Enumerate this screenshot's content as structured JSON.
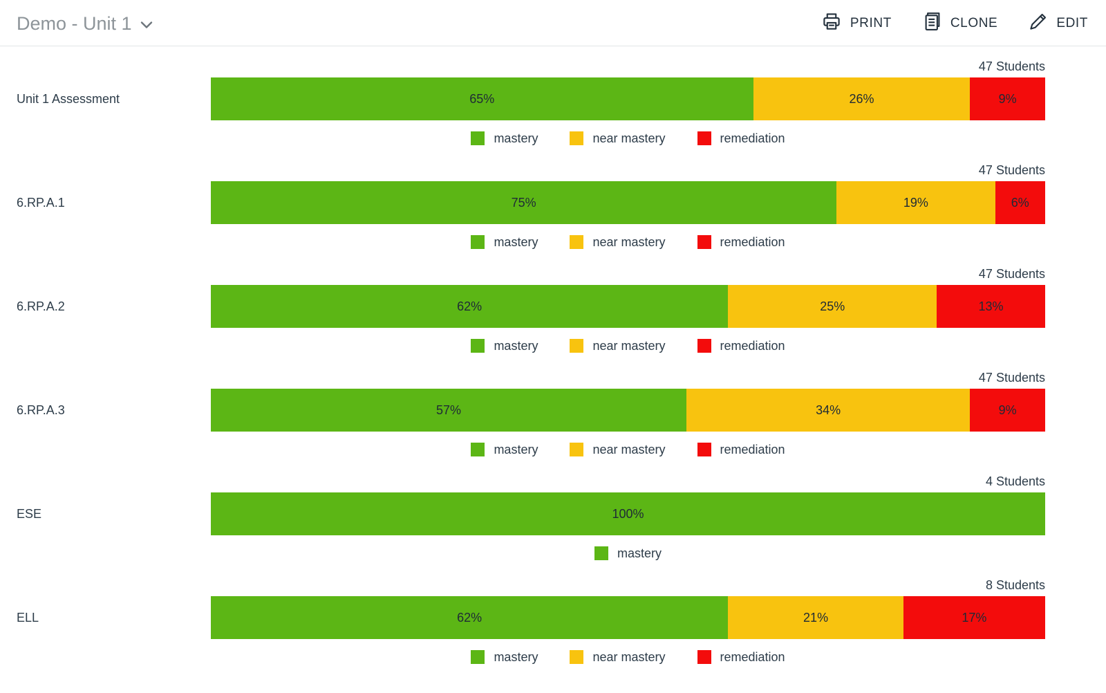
{
  "header": {
    "title": "Demo - Unit 1",
    "actions": {
      "print": "PRINT",
      "clone": "CLONE",
      "edit": "EDIT"
    }
  },
  "colors": {
    "mastery": "#5cb615",
    "near mastery": "#f8c30f",
    "remediation": "#f30c0c"
  },
  "chart_data": [
    {
      "type": "bar",
      "label": "Unit 1 Assessment",
      "students": "47 Students",
      "xlim": [
        0,
        100
      ],
      "segments": [
        {
          "name": "mastery",
          "value": 65
        },
        {
          "name": "near mastery",
          "value": 26
        },
        {
          "name": "remediation",
          "value": 9
        }
      ]
    },
    {
      "type": "bar",
      "label": "6.RP.A.1",
      "students": "47 Students",
      "xlim": [
        0,
        100
      ],
      "segments": [
        {
          "name": "mastery",
          "value": 75
        },
        {
          "name": "near mastery",
          "value": 19
        },
        {
          "name": "remediation",
          "value": 6
        }
      ]
    },
    {
      "type": "bar",
      "label": "6.RP.A.2",
      "students": "47 Students",
      "xlim": [
        0,
        100
      ],
      "segments": [
        {
          "name": "mastery",
          "value": 62
        },
        {
          "name": "near mastery",
          "value": 25
        },
        {
          "name": "remediation",
          "value": 13
        }
      ]
    },
    {
      "type": "bar",
      "label": "6.RP.A.3",
      "students": "47 Students",
      "xlim": [
        0,
        100
      ],
      "segments": [
        {
          "name": "mastery",
          "value": 57
        },
        {
          "name": "near mastery",
          "value": 34
        },
        {
          "name": "remediation",
          "value": 9
        }
      ]
    },
    {
      "type": "bar",
      "label": "ESE",
      "students": "4 Students",
      "xlim": [
        0,
        100
      ],
      "segments": [
        {
          "name": "mastery",
          "value": 100
        }
      ]
    },
    {
      "type": "bar",
      "label": "ELL",
      "students": "8 Students",
      "xlim": [
        0,
        100
      ],
      "segments": [
        {
          "name": "mastery",
          "value": 62
        },
        {
          "name": "near mastery",
          "value": 21
        },
        {
          "name": "remediation",
          "value": 17
        }
      ]
    }
  ]
}
